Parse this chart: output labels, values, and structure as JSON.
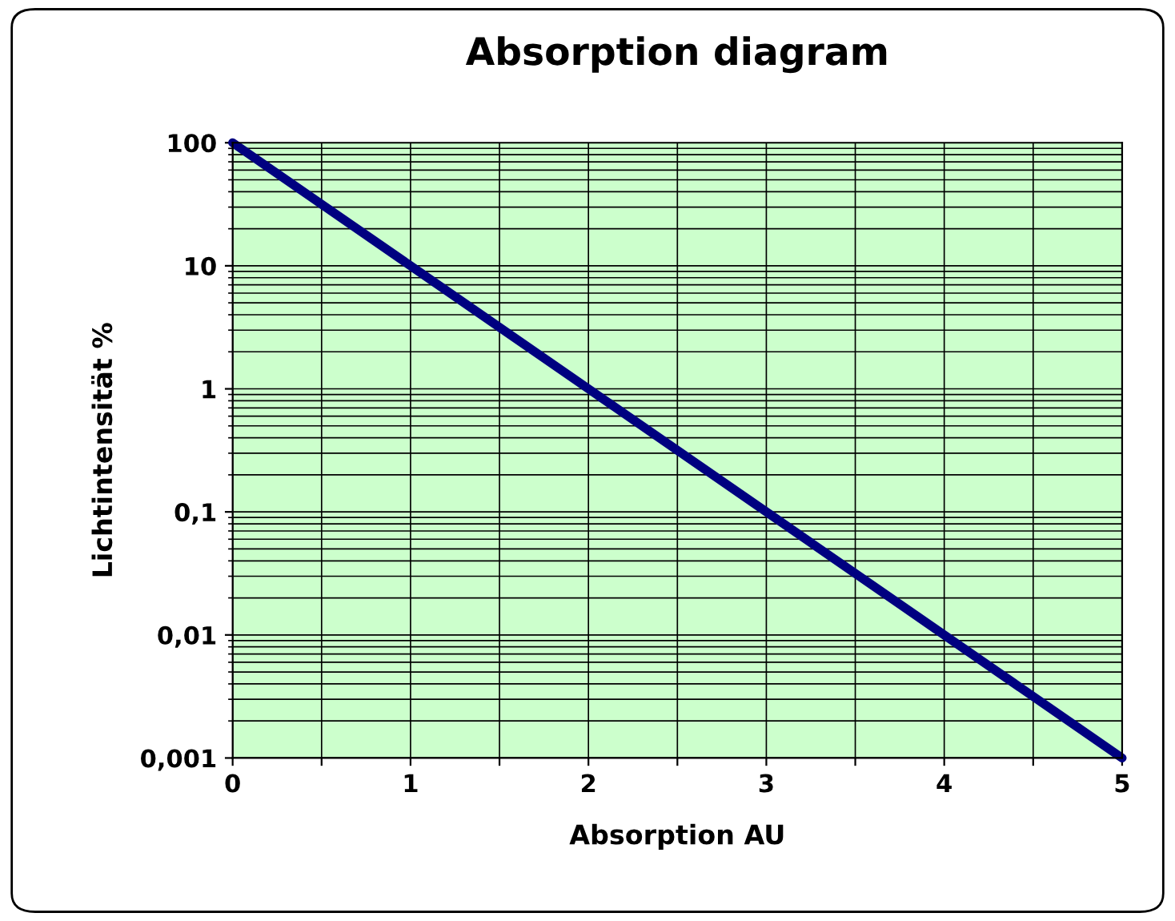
{
  "chart_data": {
    "type": "line",
    "title": "Absorption diagram",
    "xlabel": "Absorption AU",
    "ylabel": "Lichtintensität %",
    "x": [
      0,
      1,
      2,
      3,
      4,
      5
    ],
    "series": [
      {
        "color": "#000080",
        "values": [
          100,
          10,
          1,
          0.1,
          0.01,
          0.001
        ]
      }
    ],
    "log": "y",
    "xlim": [
      0,
      5
    ],
    "ylim": [
      0.001,
      100
    ],
    "xticks": [
      0,
      {
        "value": 0.5,
        "label": null
      },
      1,
      {
        "value": 1.5,
        "label": null
      },
      2,
      {
        "value": 2.5,
        "label": null
      },
      3,
      {
        "value": 3.5,
        "label": null
      },
      4,
      {
        "value": 4.5,
        "label": null
      },
      5
    ],
    "yticks": [
      {
        "value": 0.001,
        "label": "0,001"
      },
      {
        "value": 0.01,
        "label": "0,01"
      },
      {
        "value": 0.1,
        "label": "0,1"
      },
      1,
      10,
      100
    ],
    "grid": true,
    "legend": false,
    "marker": "none",
    "line_style": "solid"
  }
}
